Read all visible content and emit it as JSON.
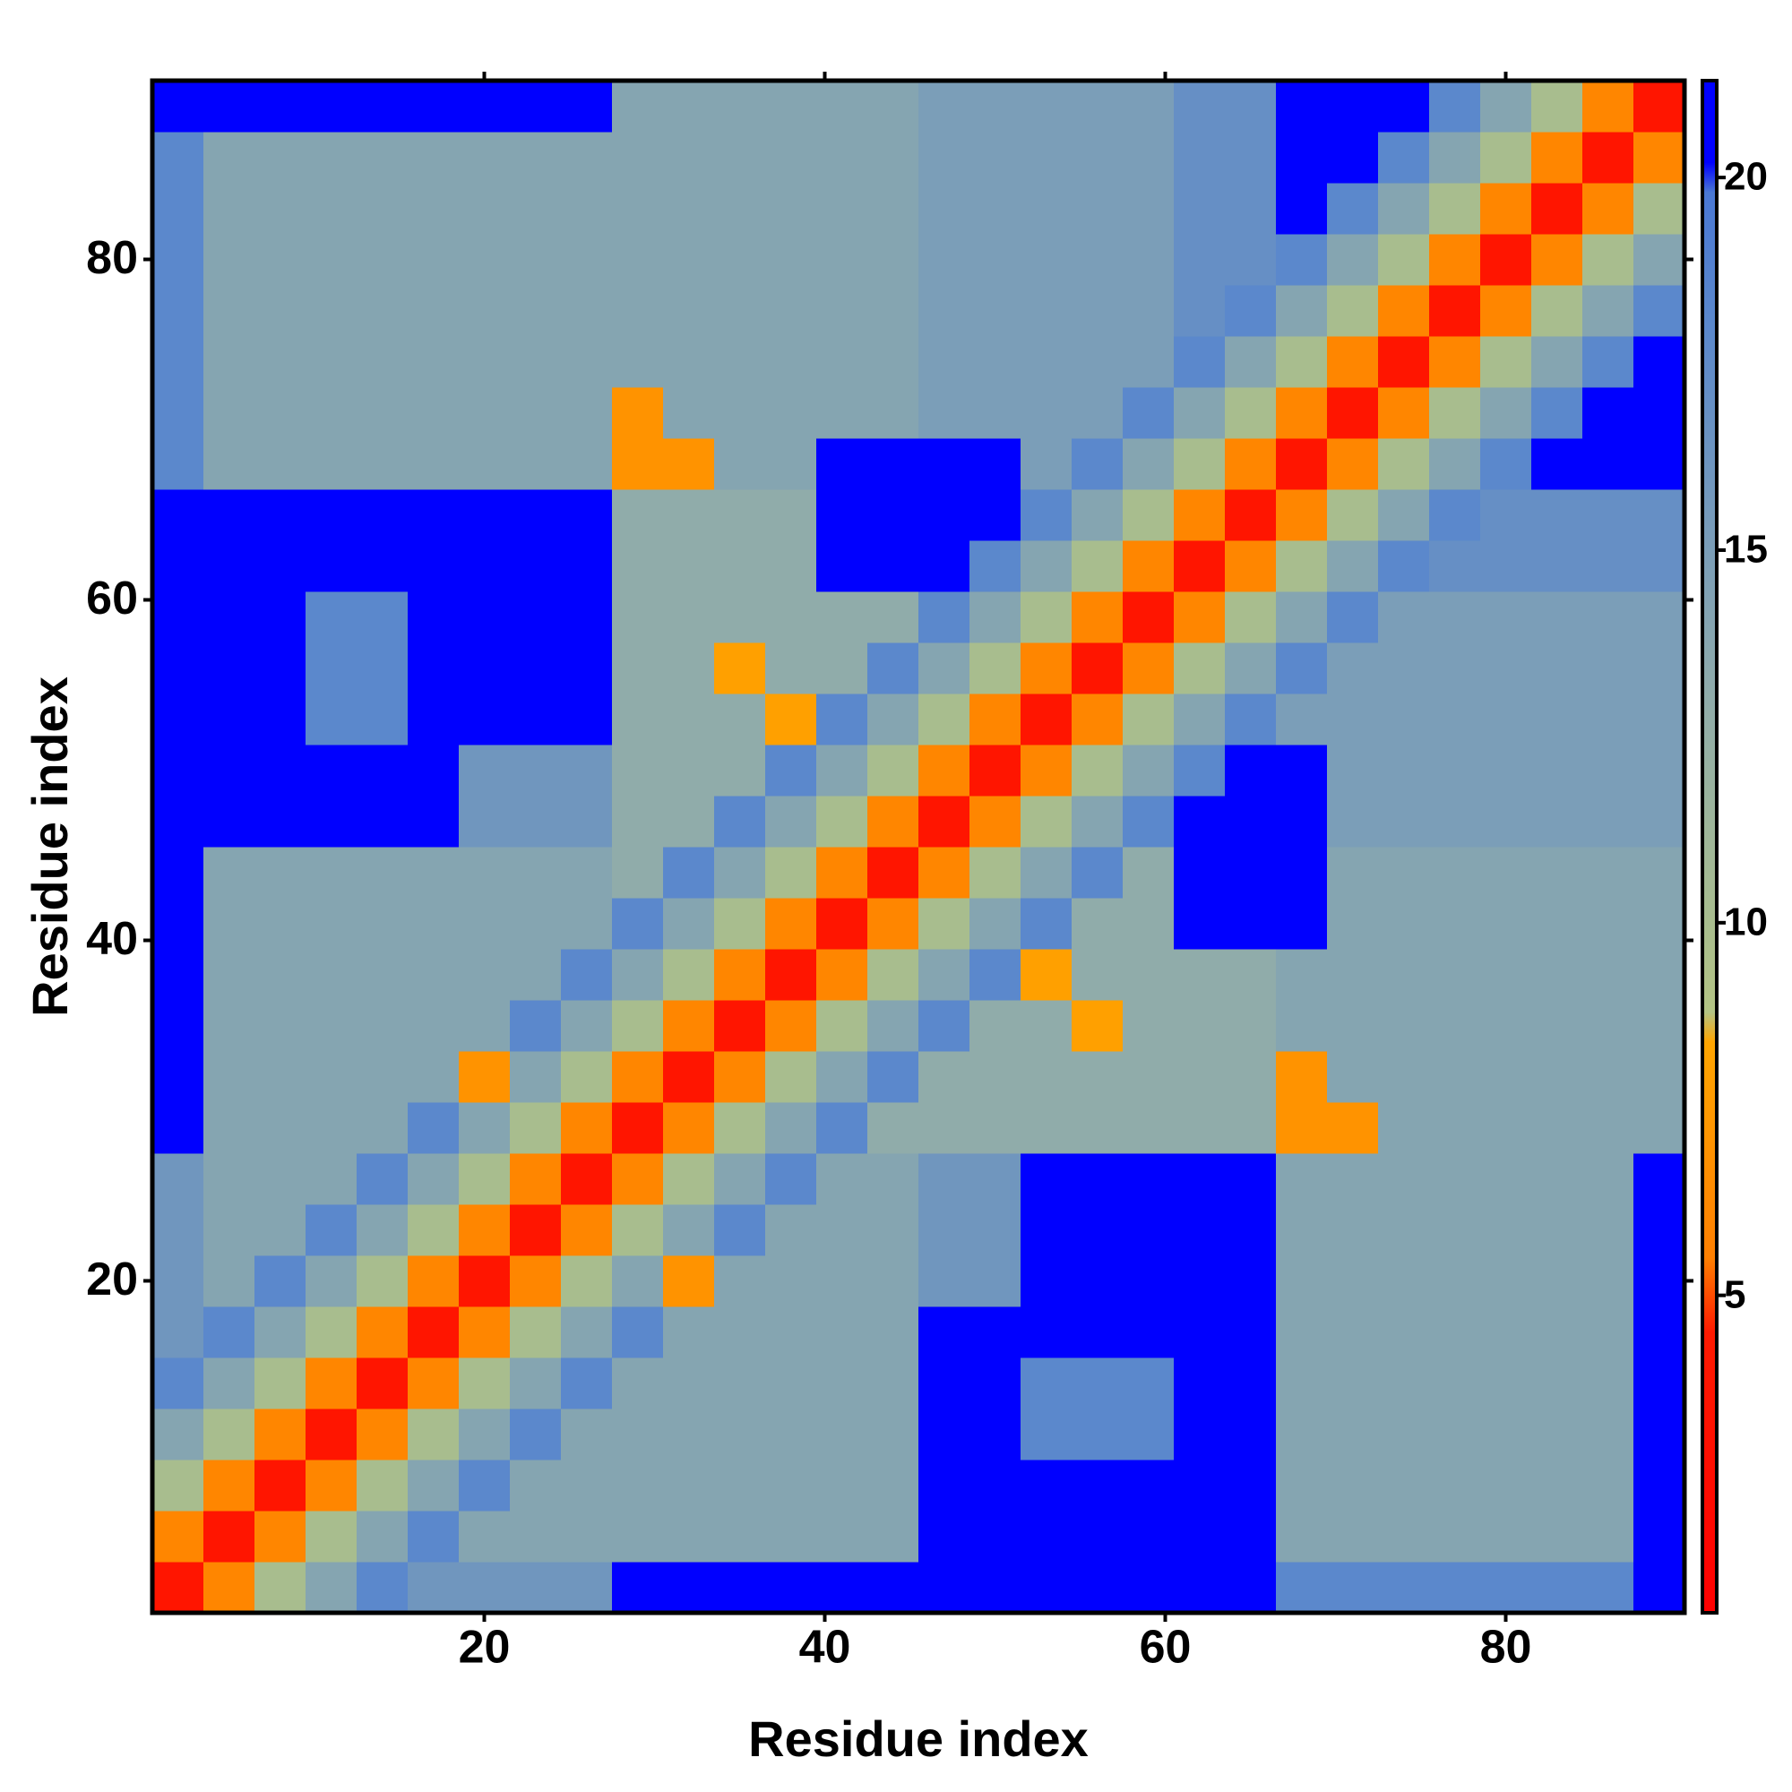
{
  "chart_data": {
    "type": "heatmap",
    "x_label": "Residue index",
    "y_label": "Residue index",
    "xbins": [
      0.5,
      3.5,
      6.5,
      9.5,
      12.5,
      15.5,
      18.5,
      21.5,
      24.5,
      27.5,
      30.5,
      33.5,
      36.5,
      39.5,
      42.5,
      45.5,
      48.5,
      51.5,
      54.5,
      57.5,
      60.5,
      63.5,
      66.5,
      69.5,
      72.5,
      75.5,
      78.5,
      81.5,
      84.5,
      87.5,
      90.5
    ],
    "ybins": [
      0.5,
      3.5,
      6.5,
      9.5,
      12.5,
      15.5,
      18.5,
      21.5,
      24.5,
      27.5,
      30.5,
      33.5,
      36.5,
      39.5,
      42.5,
      45.5,
      48.5,
      51.5,
      54.5,
      57.5,
      60.5,
      63.5,
      66.5,
      69.5,
      72.5,
      75.5,
      78.5,
      81.5,
      84.5,
      87.5,
      90.5
    ],
    "xlim": [
      0.5,
      90.5
    ],
    "ylim": [
      0.5,
      90.5
    ],
    "xticks": [
      20,
      40,
      60,
      80
    ],
    "yticks": [
      20,
      40,
      60,
      80
    ],
    "clim": [
      0.74,
      21.3
    ],
    "cticks": [
      5,
      10,
      15,
      20
    ],
    "colorscale": [
      {
        "value": 0.74,
        "color": "#ff0000"
      },
      {
        "value": 4.5,
        "color": "#ff1a00"
      },
      {
        "value": 5.5,
        "color": "#ff7f00"
      },
      {
        "value": 8.4,
        "color": "#ffa500"
      },
      {
        "value": 8.8,
        "color": "#b4c484"
      },
      {
        "value": 10,
        "color": "#a8bd8e"
      },
      {
        "value": 13,
        "color": "#90acaa"
      },
      {
        "value": 18,
        "color": "#5b88cc"
      },
      {
        "value": 19.8,
        "color": "#4a78d4"
      },
      {
        "value": 20.2,
        "color": "#0000ff"
      },
      {
        "value": 21.3,
        "color": "#0000ff"
      }
    ],
    "z": [
      [
        3.8,
        6,
        10,
        14,
        18,
        16,
        16,
        16,
        16,
        21,
        21,
        21,
        21,
        21,
        21,
        21,
        21,
        21,
        21,
        21,
        21,
        21,
        18,
        18,
        18,
        18,
        18,
        18,
        18,
        21
      ],
      [
        6,
        3.8,
        6,
        10,
        14,
        18,
        14,
        14,
        14,
        14,
        14,
        14,
        14,
        14,
        14,
        21,
        21,
        21,
        21,
        21,
        21,
        21,
        14,
        14,
        14,
        14,
        14,
        14,
        14,
        21
      ],
      [
        10,
        6,
        3.8,
        6,
        10,
        14,
        18,
        14,
        14,
        14,
        14,
        14,
        14,
        14,
        14,
        21,
        21,
        21,
        21,
        21,
        21,
        21,
        14,
        14,
        14,
        14,
        14,
        14,
        14,
        21
      ],
      [
        14,
        10,
        6,
        3.8,
        6,
        10,
        14,
        18,
        14,
        14,
        14,
        14,
        14,
        14,
        14,
        21,
        21,
        18,
        18,
        18,
        21,
        21,
        14,
        14,
        14,
        14,
        14,
        14,
        14,
        21
      ],
      [
        18,
        14,
        10,
        6,
        3.8,
        6,
        10,
        14,
        18,
        14,
        14,
        14,
        14,
        14,
        14,
        21,
        21,
        18,
        18,
        18,
        21,
        21,
        14,
        14,
        14,
        14,
        14,
        14,
        14,
        21
      ],
      [
        16,
        18,
        14,
        10,
        6,
        3.8,
        6,
        10,
        14,
        18,
        14,
        14,
        14,
        14,
        14,
        21,
        21,
        21,
        21,
        21,
        21,
        21,
        14,
        14,
        14,
        14,
        14,
        14,
        14,
        21
      ],
      [
        16,
        14,
        18,
        14,
        10,
        6,
        3.8,
        6,
        10,
        14,
        7,
        14,
        14,
        14,
        14,
        16,
        16,
        21,
        21,
        21,
        21,
        21,
        14,
        14,
        14,
        14,
        14,
        14,
        14,
        21
      ],
      [
        16,
        14,
        14,
        18,
        14,
        10,
        6,
        3.8,
        6,
        10,
        14,
        18,
        14,
        14,
        14,
        16,
        16,
        21,
        21,
        21,
        21,
        21,
        14,
        14,
        14,
        14,
        14,
        14,
        14,
        21
      ],
      [
        16,
        14,
        14,
        14,
        18,
        14,
        10,
        6,
        3.8,
        6,
        10,
        14,
        18,
        14,
        14,
        16,
        16,
        21,
        21,
        21,
        21,
        21,
        14,
        14,
        14,
        14,
        14,
        14,
        14,
        21
      ],
      [
        21,
        14,
        14,
        14,
        14,
        18,
        14,
        10,
        6,
        3.8,
        6,
        10,
        14,
        18,
        13,
        13,
        13,
        13,
        13,
        13,
        13,
        13,
        7,
        7,
        14,
        14,
        14,
        14,
        14,
        14
      ],
      [
        21,
        14,
        14,
        14,
        14,
        14,
        7,
        14,
        10,
        6,
        3.8,
        6,
        10,
        14,
        18,
        13,
        13,
        13,
        13,
        13,
        13,
        13,
        7,
        14,
        14,
        14,
        14,
        14,
        14,
        14
      ],
      [
        21,
        14,
        14,
        14,
        14,
        14,
        14,
        18,
        14,
        10,
        6,
        3.8,
        6,
        10,
        14,
        18,
        13,
        13,
        8,
        13,
        13,
        13,
        14,
        14,
        14,
        14,
        14,
        14,
        14,
        14
      ],
      [
        21,
        14,
        14,
        14,
        14,
        14,
        14,
        14,
        18,
        14,
        10,
        6,
        3.8,
        6,
        10,
        14,
        18,
        8,
        13,
        13,
        13,
        13,
        14,
        14,
        14,
        14,
        14,
        14,
        14,
        14
      ],
      [
        21,
        14,
        14,
        14,
        14,
        14,
        14,
        14,
        14,
        18,
        14,
        10,
        6,
        3.8,
        6,
        10,
        14,
        18,
        13,
        13,
        21,
        21,
        21,
        14,
        14,
        14,
        14,
        14,
        14,
        14
      ],
      [
        21,
        14,
        14,
        14,
        14,
        14,
        14,
        14,
        14,
        13,
        18,
        14,
        10,
        6,
        3.8,
        6,
        10,
        14,
        18,
        13,
        21,
        21,
        21,
        14,
        14,
        14,
        14,
        14,
        14,
        14
      ],
      [
        21,
        21,
        21,
        21,
        21,
        21,
        16,
        16,
        16,
        13,
        13,
        18,
        14,
        10,
        6,
        3.8,
        6,
        10,
        14,
        18,
        21,
        21,
        21,
        15,
        15,
        15,
        15,
        15,
        15,
        15
      ],
      [
        21,
        21,
        21,
        21,
        21,
        21,
        16,
        16,
        16,
        13,
        13,
        13,
        18,
        14,
        10,
        6,
        3.8,
        6,
        10,
        14,
        18,
        21,
        21,
        15,
        15,
        15,
        15,
        15,
        15,
        15
      ],
      [
        21,
        21,
        21,
        18,
        18,
        21,
        21,
        21,
        21,
        13,
        13,
        13,
        8,
        18,
        14,
        10,
        6,
        3.8,
        6,
        10,
        14,
        18,
        15,
        15,
        15,
        15,
        15,
        15,
        15,
        15
      ],
      [
        21,
        21,
        21,
        18,
        18,
        21,
        21,
        21,
        21,
        13,
        13,
        8,
        13,
        13,
        18,
        14,
        10,
        6,
        3.8,
        6,
        10,
        14,
        18,
        15,
        15,
        15,
        15,
        15,
        15,
        15
      ],
      [
        21,
        21,
        21,
        18,
        18,
        21,
        21,
        21,
        21,
        13,
        13,
        13,
        13,
        13,
        13,
        18,
        14,
        10,
        6,
        3.8,
        6,
        10,
        14,
        18,
        15,
        15,
        15,
        15,
        15,
        15
      ],
      [
        21,
        21,
        21,
        21,
        21,
        21,
        21,
        21,
        21,
        13,
        13,
        13,
        13,
        21,
        21,
        21,
        18,
        14,
        10,
        6,
        3.8,
        6,
        10,
        14,
        18,
        17,
        17,
        17,
        17,
        17
      ],
      [
        21,
        21,
        21,
        21,
        21,
        21,
        21,
        21,
        21,
        13,
        13,
        13,
        13,
        21,
        21,
        21,
        21,
        18,
        14,
        10,
        6,
        3.8,
        6,
        10,
        14,
        18,
        17,
        17,
        17,
        17
      ],
      [
        18,
        14,
        14,
        14,
        14,
        14,
        14,
        14,
        14,
        7,
        7,
        14,
        14,
        21,
        21,
        21,
        21,
        15,
        18,
        14,
        10,
        6,
        3.8,
        6,
        10,
        14,
        18,
        21,
        21,
        21
      ],
      [
        18,
        14,
        14,
        14,
        14,
        14,
        14,
        14,
        14,
        7,
        14,
        14,
        14,
        14,
        14,
        15,
        15,
        15,
        15,
        18,
        14,
        10,
        6,
        3.8,
        6,
        10,
        14,
        18,
        21,
        21
      ],
      [
        18,
        14,
        14,
        14,
        14,
        14,
        14,
        14,
        14,
        14,
        14,
        14,
        14,
        14,
        14,
        15,
        15,
        15,
        15,
        15,
        18,
        14,
        10,
        6,
        3.8,
        6,
        10,
        14,
        18,
        21
      ],
      [
        18,
        14,
        14,
        14,
        14,
        14,
        14,
        14,
        14,
        14,
        14,
        14,
        14,
        14,
        14,
        15,
        15,
        15,
        15,
        15,
        17,
        18,
        14,
        10,
        6,
        3.8,
        6,
        10,
        14,
        18
      ],
      [
        18,
        14,
        14,
        14,
        14,
        14,
        14,
        14,
        14,
        14,
        14,
        14,
        14,
        14,
        14,
        15,
        15,
        15,
        15,
        15,
        17,
        17,
        18,
        14,
        10,
        6,
        3.8,
        6,
        10,
        14
      ],
      [
        18,
        14,
        14,
        14,
        14,
        14,
        14,
        14,
        14,
        14,
        14,
        14,
        14,
        14,
        14,
        15,
        15,
        15,
        15,
        15,
        17,
        17,
        21,
        18,
        14,
        10,
        6,
        3.8,
        6,
        10
      ],
      [
        18,
        14,
        14,
        14,
        14,
        14,
        14,
        14,
        14,
        14,
        14,
        14,
        14,
        14,
        14,
        15,
        15,
        15,
        15,
        15,
        17,
        17,
        21,
        21,
        18,
        14,
        10,
        6,
        3.8,
        6
      ],
      [
        21,
        21,
        21,
        21,
        21,
        21,
        21,
        21,
        21,
        14,
        14,
        14,
        14,
        14,
        14,
        15,
        15,
        15,
        15,
        15,
        17,
        17,
        21,
        21,
        21,
        18,
        14,
        10,
        6,
        3.8
      ]
    ]
  }
}
